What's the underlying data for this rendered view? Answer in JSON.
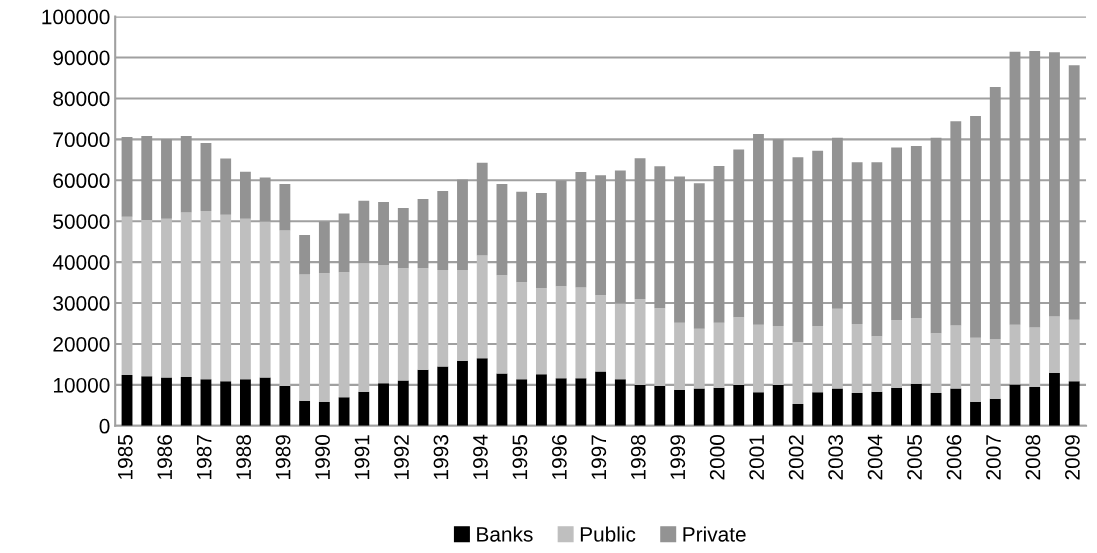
{
  "chart_data": {
    "type": "bar",
    "stacked": true,
    "categories": [
      "1985",
      null,
      "1986",
      null,
      "1987",
      null,
      "1988",
      null,
      "1989",
      null,
      "1990",
      null,
      "1991",
      null,
      "1992",
      null,
      "1993",
      null,
      "1994",
      null,
      "1995",
      null,
      "1996",
      null,
      "1997",
      null,
      "1998",
      null,
      "1999",
      null,
      "2000",
      null,
      "2001",
      null,
      "2002",
      null,
      "2003",
      null,
      "2004",
      null,
      "2005",
      null,
      "2006",
      null,
      "2007",
      null,
      "2008",
      null,
      "2009"
    ],
    "series": [
      {
        "name": "Banks",
        "color": "#000000",
        "values": [
          12400,
          12100,
          11800,
          11900,
          11400,
          10900,
          11400,
          11800,
          9700,
          6100,
          5800,
          7000,
          8300,
          10400,
          11100,
          13700,
          14500,
          15900,
          16500,
          12800,
          11400,
          12600,
          11600,
          11600,
          13300,
          11400,
          10000,
          9700,
          8800,
          9100,
          9300,
          10000,
          8200,
          10000,
          5300,
          8200,
          9100,
          8000,
          8300,
          9300,
          10300,
          8000,
          9100,
          5900,
          6600,
          10100,
          9500,
          12900,
          10900
        ]
      },
      {
        "name": "Public",
        "color": "#bfbfbf",
        "values": [
          38700,
          38200,
          38800,
          40200,
          41100,
          40700,
          39200,
          38100,
          38000,
          30900,
          31500,
          30500,
          31400,
          28900,
          27400,
          24800,
          23600,
          22200,
          25100,
          24000,
          23700,
          21000,
          22500,
          22200,
          18600,
          18500,
          20900,
          19000,
          16400,
          14600,
          15900,
          16500,
          16500,
          14400,
          15100,
          16100,
          19500,
          16900,
          13600,
          16500,
          16000,
          14600,
          15400,
          15600,
          14600,
          14600,
          14500,
          13800,
          15000
        ]
      },
      {
        "name": "Private",
        "color": "#939393",
        "values": [
          19500,
          20500,
          19500,
          18700,
          16600,
          13700,
          11500,
          10800,
          11400,
          9600,
          12600,
          14400,
          15300,
          15400,
          14700,
          16900,
          19300,
          22100,
          22700,
          22300,
          22100,
          23300,
          25800,
          28200,
          29300,
          32500,
          34500,
          34700,
          35700,
          35600,
          38300,
          41000,
          46600,
          45600,
          45200,
          42900,
          41800,
          39500,
          42500,
          42200,
          42100,
          47800,
          49900,
          54200,
          61600,
          66700,
          67600,
          64600,
          62200
        ]
      }
    ],
    "ylim": [
      0,
      100000
    ],
    "yticks": [
      0,
      10000,
      20000,
      30000,
      40000,
      50000,
      60000,
      70000,
      80000,
      90000,
      100000
    ],
    "grid": "y",
    "legend": "bottom"
  }
}
